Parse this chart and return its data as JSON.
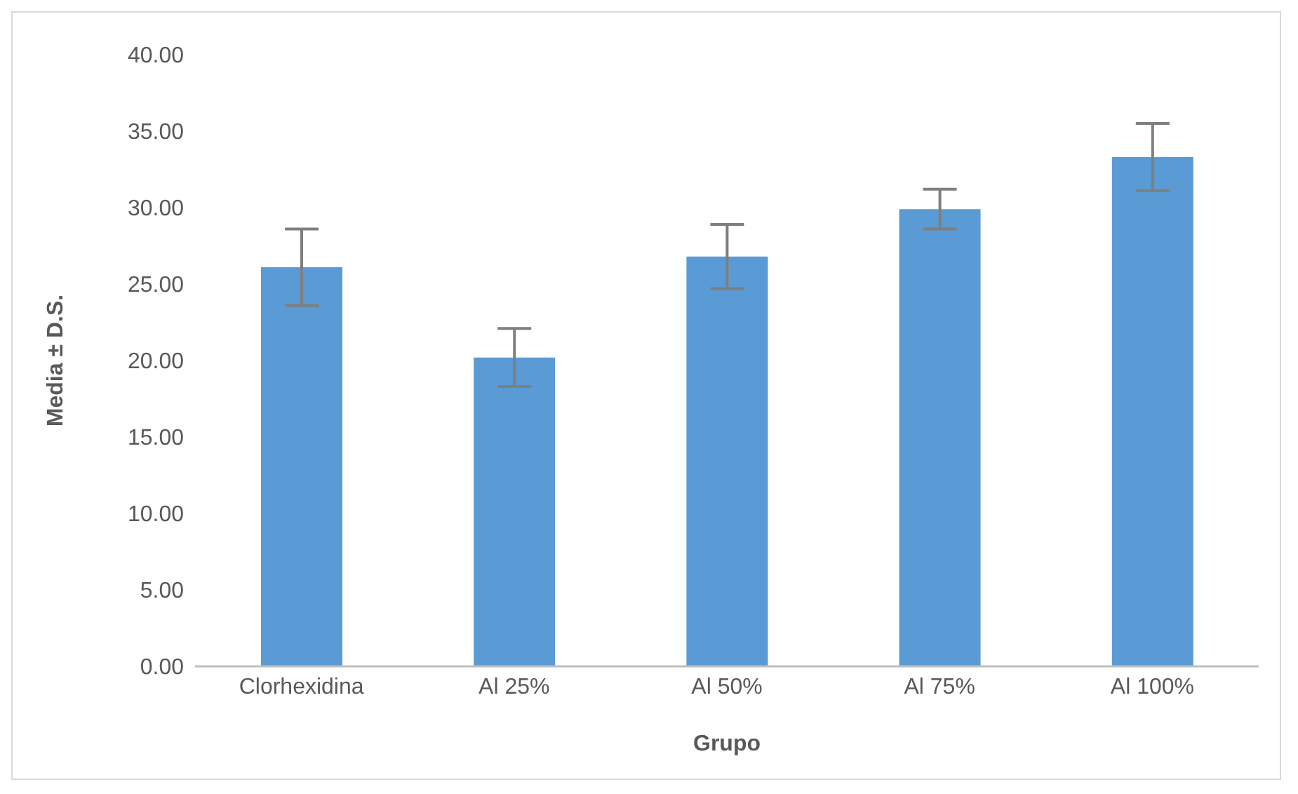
{
  "chart_data": {
    "type": "bar",
    "xlabel": "Grupo",
    "ylabel": "Media ± D.S.",
    "categories": [
      "Clorhexidina",
      "Al 25%",
      "Al 50%",
      "Al 75%",
      "Al 100%"
    ],
    "values": [
      26.1,
      20.2,
      26.8,
      29.9,
      33.3
    ],
    "errors": [
      2.5,
      1.9,
      2.1,
      1.3,
      2.2
    ],
    "color": "#5b9bd5",
    "ylim": [
      0,
      40
    ],
    "yticks": [
      {
        "value": 0,
        "label": "0.00"
      },
      {
        "value": 5,
        "label": "5.00"
      },
      {
        "value": 10,
        "label": "10.00"
      },
      {
        "value": 15,
        "label": "15.00"
      },
      {
        "value": 20,
        "label": "20.00"
      },
      {
        "value": 25,
        "label": "25.00"
      },
      {
        "value": 30,
        "label": "30.00"
      },
      {
        "value": 35,
        "label": "35.00"
      },
      {
        "value": 40,
        "label": "40.00"
      }
    ],
    "grid": false,
    "legend": false
  }
}
